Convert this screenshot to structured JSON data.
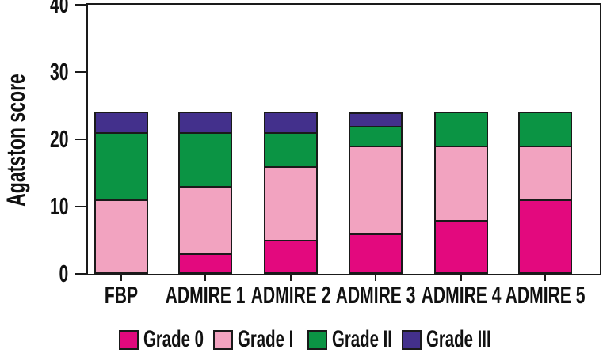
{
  "figure": {
    "background": "#ffffff",
    "axis_color": "#1a1a1a"
  },
  "chart_data": {
    "type": "bar",
    "stacked": true,
    "title": "",
    "ylabel": "Agatston score",
    "xlabel": "",
    "categories": [
      "FBP",
      "ADMIRE 1",
      "ADMIRE 2",
      "ADMIRE 3",
      "ADMIRE 4",
      "ADMIRE 5"
    ],
    "series": [
      {
        "name": "Grade 0",
        "color": "#E3097E",
        "values": [
          0,
          3,
          5,
          6,
          8,
          11
        ]
      },
      {
        "name": "Grade I",
        "color": "#F2A3C0",
        "values": [
          11,
          10,
          11,
          13,
          11,
          8
        ]
      },
      {
        "name": "Grade II",
        "color": "#0B9444",
        "values": [
          10,
          8,
          5,
          3,
          5,
          5
        ]
      },
      {
        "name": "Grade III",
        "color": "#43308C",
        "values": [
          3,
          3,
          3,
          2,
          0,
          0
        ]
      }
    ],
    "bar_total_per_category": 24,
    "ylim": [
      0,
      40
    ],
    "y_ticks": [
      0,
      10,
      20,
      30,
      40
    ],
    "grid": false,
    "legend_position": "bottom",
    "legend_labels": [
      "Grade 0",
      "Grade I",
      "Grade II",
      "Grade III"
    ]
  }
}
